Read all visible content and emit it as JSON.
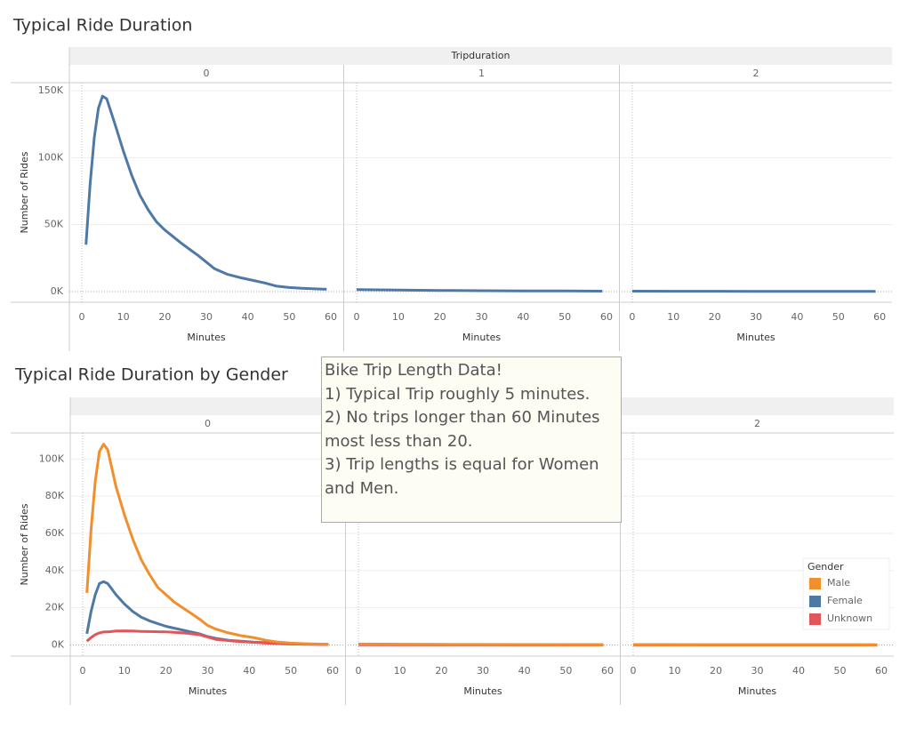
{
  "chart_data": [
    {
      "type": "line",
      "title": "Typical Ride Duration",
      "facet_label": "Tripduration",
      "x_label": "Minutes",
      "y_label": "Number of Rides",
      "xlim": [
        -3,
        63
      ],
      "xticks": [
        0,
        10,
        20,
        30,
        40,
        50,
        60
      ],
      "ylim": [
        -8000,
        156000
      ],
      "yticks": [
        {
          "value": 0,
          "label": "0K"
        },
        {
          "value": 50000,
          "label": "50K"
        },
        {
          "value": 100000,
          "label": "100K"
        },
        {
          "value": 150000,
          "label": "150K"
        }
      ],
      "grid": true,
      "panels": [
        {
          "label": "0",
          "x": [
            1,
            2,
            3,
            4,
            5,
            6,
            8,
            10,
            12,
            14,
            16,
            18,
            20,
            22,
            24,
            26,
            28,
            30,
            32,
            35,
            38,
            41,
            44,
            47,
            50,
            53,
            56,
            59
          ],
          "series": [
            {
              "color": "#4e79a7",
              "values": [
                35000,
                80000,
                115000,
                137000,
                146000,
                144000,
                125000,
                105000,
                87000,
                72000,
                61000,
                52000,
                46000,
                41000,
                36000,
                31500,
                27000,
                22000,
                17000,
                13000,
                10500,
                8500,
                6500,
                4000,
                3000,
                2500,
                2000,
                1700
              ]
            }
          ]
        },
        {
          "label": "1",
          "x": [
            0,
            10,
            20,
            30,
            40,
            50,
            59
          ],
          "series": [
            {
              "color": "#4e79a7",
              "values": [
                1500,
                1100,
                800,
                600,
                500,
                400,
                300
              ]
            }
          ]
        },
        {
          "label": "2",
          "x": [
            0,
            10,
            20,
            30,
            40,
            50,
            59
          ],
          "series": [
            {
              "color": "#4e79a7",
              "values": [
                300,
                250,
                200,
                150,
                120,
                100,
                80
              ]
            }
          ]
        }
      ]
    },
    {
      "type": "line",
      "title": "Typical Ride Duration by Gender",
      "facet_label": "Tripduration",
      "x_label": "Minutes",
      "y_label": "Number of Rides",
      "xlim": [
        -3,
        63
      ],
      "xticks": [
        0,
        10,
        20,
        30,
        40,
        50,
        60
      ],
      "ylim": [
        -6000,
        114000
      ],
      "yticks": [
        {
          "value": 0,
          "label": "0K"
        },
        {
          "value": 20000,
          "label": "20K"
        },
        {
          "value": 40000,
          "label": "40K"
        },
        {
          "value": 60000,
          "label": "60K"
        },
        {
          "value": 80000,
          "label": "80K"
        },
        {
          "value": 100000,
          "label": "100K"
        }
      ],
      "grid": true,
      "legend_title": "Gender",
      "legend": [
        "Male",
        "Female",
        "Unknown"
      ],
      "legend_colors": [
        "#f28e2b",
        "#4e79a7",
        "#e15759"
      ],
      "panels": [
        {
          "label": "0",
          "x": [
            1,
            2,
            3,
            4,
            5,
            6,
            8,
            10,
            12,
            14,
            16,
            18,
            20,
            22,
            24,
            26,
            28,
            30,
            32,
            35,
            38,
            41,
            44,
            47,
            50,
            53,
            56,
            59
          ],
          "series": [
            {
              "color": "#4e79a7",
              "values": [
                6000,
                18000,
                27000,
                33000,
                34000,
                33000,
                27000,
                22000,
                18000,
                15000,
                13000,
                11500,
                10000,
                9000,
                8000,
                7000,
                6000,
                4500,
                3500,
                2500,
                2000,
                1500,
                1200,
                800,
                600,
                400,
                300,
                200
              ]
            },
            {
              "color": "#e15759",
              "values": [
                2000,
                4000,
                5500,
                6500,
                7000,
                7000,
                7500,
                7600,
                7500,
                7300,
                7200,
                7100,
                7000,
                6800,
                6500,
                6000,
                5500,
                4300,
                3000,
                2300,
                1800,
                1400,
                1000,
                700,
                500,
                400,
                300,
                200
              ]
            },
            {
              "color": "#f28e2b",
              "values": [
                28000,
                62000,
                88000,
                104000,
                108000,
                105000,
                85000,
                70000,
                57000,
                46000,
                38000,
                31000,
                27000,
                23000,
                20000,
                17000,
                14000,
                10500,
                8500,
                6500,
                5000,
                4000,
                2500,
                1500,
                1000,
                700,
                500,
                400
              ]
            }
          ]
        },
        {
          "label": "1",
          "x": [
            0,
            10,
            20,
            30,
            40,
            50,
            59
          ],
          "series": [
            {
              "color": "#4e79a7",
              "values": [
                200,
                150,
                120,
                100,
                80,
                60,
                50
              ]
            },
            {
              "color": "#e15759",
              "values": [
                100,
                80,
                60,
                50,
                40,
                30,
                20
              ]
            },
            {
              "color": "#f28e2b",
              "values": [
                500,
                400,
                300,
                250,
                200,
                150,
                100
              ]
            }
          ]
        },
        {
          "label": "2",
          "x": [
            0,
            10,
            20,
            30,
            40,
            50,
            59
          ],
          "series": [
            {
              "color": "#4e79a7",
              "values": [
                60,
                50,
                40,
                30,
                25,
                20,
                15
              ]
            },
            {
              "color": "#e15759",
              "values": [
                30,
                25,
                20,
                15,
                10,
                8,
                5
              ]
            },
            {
              "color": "#f28e2b",
              "values": [
                150,
                120,
                100,
                80,
                60,
                50,
                40
              ]
            }
          ]
        }
      ],
      "annotation": [
        "Bike Trip Length Data!",
        "1) Typical Trip roughly 5 minutes.",
        "2) No trips longer than 60 Minutes most less than 20.",
        "3) Trip lengths is equal for Women and Men."
      ]
    }
  ]
}
